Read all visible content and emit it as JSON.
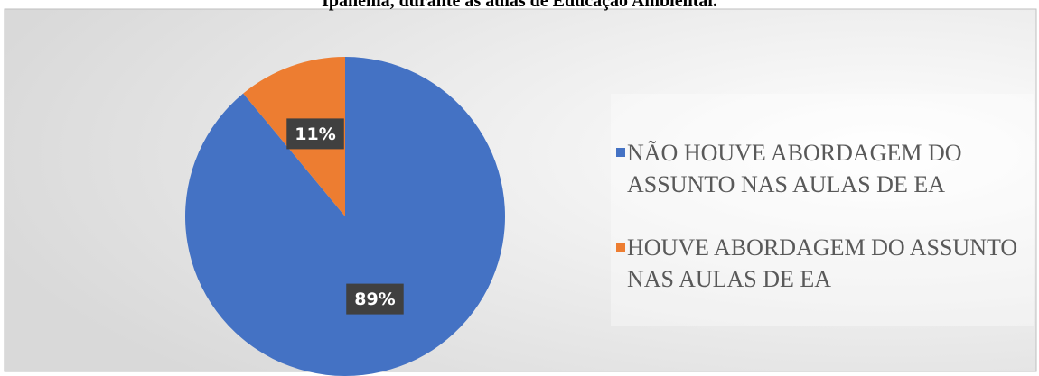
{
  "chart_data": {
    "type": "pie",
    "title": "Ipanema, durante as aulas de Educação Ambiental.",
    "categories": [
      "NÃO HOUVE ABORDAGEM DO ASSUNTO NAS AULAS DE EA",
      "HOUVE ABORDAGEM DO ASSUNTO NAS AULAS DE EA"
    ],
    "values": [
      89,
      11
    ],
    "value_labels": [
      "89%",
      "11%"
    ],
    "colors": [
      "#4472c4",
      "#ed7d31"
    ],
    "legend": "right"
  }
}
